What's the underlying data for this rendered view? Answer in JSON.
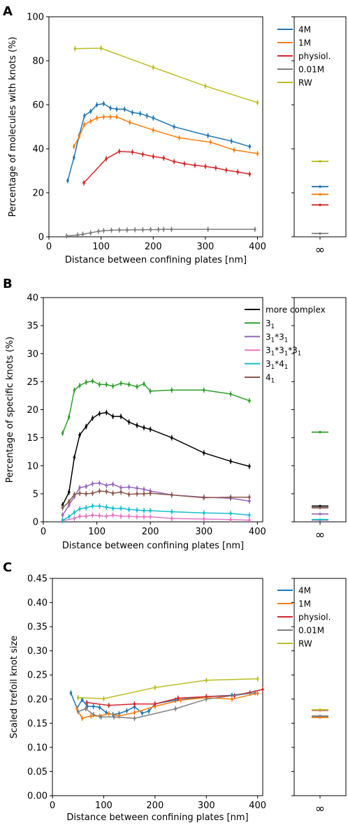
{
  "chart_data": [
    {
      "panel": "A",
      "type": "line",
      "xlabel": "Distance between confining plates [nm]",
      "ylabel": "Percentage of molecules with knots (%)",
      "xlim": [
        0,
        410
      ],
      "ylim": [
        0,
        100
      ],
      "xticks": [
        "0",
        "100",
        "200",
        "300",
        "400"
      ],
      "yticks": [
        "0",
        "20",
        "40",
        "60",
        "80",
        "100"
      ],
      "legend_position": "top-right",
      "inf_label": "∞",
      "series": [
        {
          "name": "4M",
          "color": "#1f77b4",
          "x": [
            36,
            48,
            58,
            68,
            80,
            92,
            105,
            118,
            130,
            145,
            160,
            175,
            188,
            200,
            240,
            305,
            350,
            385
          ],
          "y": [
            25.5,
            36,
            46,
            55,
            57,
            60,
            60.5,
            58.5,
            58,
            58,
            56.5,
            56,
            55,
            54,
            50,
            46,
            43.5,
            41
          ],
          "inf": 22.8
        },
        {
          "name": "1M",
          "color": "#ff7f0e",
          "x": [
            48,
            58,
            68,
            80,
            92,
            105,
            118,
            130,
            155,
            200,
            250,
            310,
            355,
            400
          ],
          "y": [
            41,
            45.5,
            51,
            52.5,
            54,
            54.5,
            54.5,
            54.5,
            52,
            48.5,
            45,
            43,
            39.5,
            37.8
          ],
          "inf": 19.3
        },
        {
          "name": "physiol.",
          "color": "#d62728",
          "x": [
            67,
            110,
            135,
            160,
            180,
            200,
            220,
            240,
            260,
            280,
            300,
            320,
            340,
            362,
            385
          ],
          "y": [
            24.5,
            35.5,
            38.8,
            38.5,
            37.5,
            36.5,
            35.8,
            34.2,
            33.2,
            32.5,
            32,
            31.3,
            30.3,
            29.5,
            28.5
          ],
          "inf": 14.5
        },
        {
          "name": "0.01M",
          "color": "#7f7f7f",
          "x": [
            34,
            55,
            65,
            80,
            95,
            105,
            120,
            135,
            150,
            165,
            180,
            195,
            210,
            220,
            235,
            305,
            395
          ],
          "y": [
            0.4,
            0.8,
            1.2,
            1.8,
            2.5,
            2.8,
            3,
            3.1,
            3.1,
            3.2,
            3.2,
            3.3,
            3.3,
            3.4,
            3.4,
            3.4,
            3.4
          ],
          "inf": 1.5
        },
        {
          "name": "RW",
          "color": "#bcbd22",
          "x": [
            50,
            100,
            200,
            300,
            400
          ],
          "y": [
            85.5,
            85.7,
            77,
            68.5,
            61
          ],
          "inf": 34.3
        }
      ]
    },
    {
      "panel": "B",
      "type": "line",
      "xlabel": "Distance between confining plates [nm]",
      "ylabel": "Percentage of specific knots (%)",
      "xlim": [
        0,
        410
      ],
      "ylim": [
        0,
        40
      ],
      "xticks": [
        "0",
        "100",
        "200",
        "300",
        "400"
      ],
      "yticks": [
        "0",
        "5",
        "10",
        "15",
        "20",
        "25",
        "30",
        "35",
        "40"
      ],
      "legend_position": "top-right",
      "inf_label": "∞",
      "series": [
        {
          "name": "more complex",
          "legend": {
            "base": "more complex"
          },
          "color": "#000000",
          "x": [
            36,
            48,
            58,
            68,
            80,
            92,
            105,
            118,
            130,
            145,
            160,
            175,
            188,
            200,
            240,
            300,
            350,
            385
          ],
          "y": [
            3,
            5.3,
            11.5,
            15.5,
            17,
            18.5,
            19.3,
            19.5,
            18.8,
            18.8,
            17.8,
            17.2,
            16.8,
            16.5,
            15,
            12.3,
            10.8,
            9.9
          ],
          "inf": 2.8
        },
        {
          "name": "3_1",
          "legend": {
            "base": "3",
            "sub": "1"
          },
          "color": "#2ca02c",
          "x": [
            36,
            48,
            58,
            68,
            80,
            92,
            105,
            118,
            130,
            145,
            160,
            175,
            188,
            200,
            240,
            300,
            350,
            385
          ],
          "y": [
            15.8,
            18.7,
            23.5,
            24.3,
            24.9,
            25.1,
            24.5,
            24.5,
            24.2,
            24.7,
            24.5,
            24.1,
            24.6,
            23.3,
            23.5,
            23.5,
            22.8,
            21.6
          ],
          "inf": 16
        },
        {
          "name": "3_1*3_1",
          "legend": {
            "base": "3",
            "sub": "1",
            "base2": "*3",
            "sub2": "1"
          },
          "color": "#9467bd",
          "x": [
            36,
            48,
            58,
            68,
            80,
            92,
            105,
            118,
            130,
            145,
            160,
            175,
            188,
            200,
            240,
            300,
            350,
            385
          ],
          "y": [
            1.2,
            3,
            4.5,
            6.1,
            6.3,
            6.8,
            6.9,
            6.5,
            6.7,
            6.1,
            6.2,
            6,
            5.8,
            5.5,
            4.8,
            4.4,
            4.2,
            3.7
          ],
          "inf": 1.4
        },
        {
          "name": "3_1*3_1*3_1",
          "legend": {
            "base": "3",
            "sub": "1",
            "base2": "*3",
            "sub2": "1",
            "base3": "*3",
            "sub3": "1"
          },
          "color": "#e377c2",
          "x": [
            36,
            58,
            68,
            80,
            92,
            105,
            118,
            130,
            145,
            160,
            175,
            188,
            200,
            240,
            300,
            350,
            385
          ],
          "y": [
            0.2,
            0.6,
            1,
            1,
            1.2,
            1.1,
            1,
            1.2,
            1,
            1,
            0.9,
            0.9,
            0.9,
            0.6,
            0.5,
            0.4,
            0.3
          ],
          "inf": 0.3
        },
        {
          "name": "3_1*4_1",
          "legend": {
            "base": "3",
            "sub": "1",
            "base2": "*4",
            "sub2": "1"
          },
          "color": "#17becf",
          "x": [
            36,
            48,
            58,
            68,
            80,
            92,
            105,
            118,
            130,
            145,
            160,
            175,
            188,
            200,
            240,
            300,
            350,
            385
          ],
          "y": [
            0.3,
            0.9,
            1.7,
            2.3,
            2.5,
            2.8,
            2.8,
            2.6,
            2.4,
            2.4,
            2.2,
            2.1,
            2,
            2,
            1.8,
            1.6,
            1.5,
            1.2
          ],
          "inf": 0.4
        },
        {
          "name": "4_1",
          "legend": {
            "base": "4",
            "sub": "1"
          },
          "color": "#8c564b",
          "x": [
            36,
            48,
            58,
            68,
            80,
            92,
            105,
            118,
            130,
            145,
            160,
            175,
            188,
            200,
            240,
            300,
            350,
            385
          ],
          "y": [
            2.5,
            3.6,
            4.9,
            5.1,
            5,
            5.1,
            5.5,
            5.4,
            5.1,
            5.3,
            4.9,
            5,
            5,
            5.1,
            4.8,
            4.3,
            4.4,
            4.4
          ],
          "inf": 2.5
        }
      ]
    },
    {
      "panel": "C",
      "type": "line",
      "xlabel": "Distance between confining plates [nm]",
      "ylabel": "Scaled trefoil knot size",
      "xlim": [
        0,
        410
      ],
      "ylim": [
        0,
        0.45
      ],
      "xticks": [
        "0",
        "100",
        "200",
        "300",
        "400"
      ],
      "yticks": [
        "0.00",
        "0.05",
        "0.10",
        "0.15",
        "0.20",
        "0.25",
        "0.30",
        "0.35",
        "0.40",
        "0.45"
      ],
      "legend_position": "top-right",
      "inf_label": "∞",
      "series": [
        {
          "name": "4M",
          "color": "#1f77b4",
          "x": [
            36,
            48,
            58,
            68,
            80,
            92,
            105,
            118,
            130,
            145,
            160,
            175,
            188,
            200,
            240,
            300,
            350,
            385
          ],
          "y": [
            0.213,
            0.181,
            0.199,
            0.185,
            0.185,
            0.183,
            0.172,
            0.168,
            0.17,
            0.176,
            0.184,
            0.171,
            0.175,
            0.19,
            0.198,
            0.205,
            0.208,
            0.213
          ],
          "inf": 0.163
        },
        {
          "name": "1M",
          "color": "#ff7f0e",
          "x": [
            48,
            58,
            75,
            92,
            110,
            130,
            160,
            200,
            250,
            300,
            350,
            400
          ],
          "y": [
            0.18,
            0.16,
            0.165,
            0.165,
            0.17,
            0.165,
            0.172,
            0.185,
            0.198,
            0.203,
            0.2,
            0.212
          ],
          "inf": 0.162
        },
        {
          "name": "physiol.",
          "color": "#d62728",
          "x": [
            67,
            110,
            160,
            200,
            245,
            300,
            355,
            410
          ],
          "y": [
            0.193,
            0.187,
            0.19,
            0.19,
            0.202,
            0.205,
            0.207,
            0.22
          ],
          "inf": 0.177
        },
        {
          "name": "0.01M",
          "color": "#7f7f7f",
          "x": [
            50,
            65,
            80,
            95,
            120,
            160,
            240,
            300,
            395
          ],
          "y": [
            0.174,
            0.18,
            0.168,
            0.163,
            0.163,
            0.16,
            0.18,
            0.2,
            0.213
          ],
          "inf": 0.165
        },
        {
          "name": "RW",
          "color": "#bcbd22",
          "x": [
            50,
            100,
            200,
            300,
            400
          ],
          "y": [
            0.203,
            0.201,
            0.224,
            0.239,
            0.242
          ],
          "inf": 0.178
        }
      ]
    }
  ]
}
